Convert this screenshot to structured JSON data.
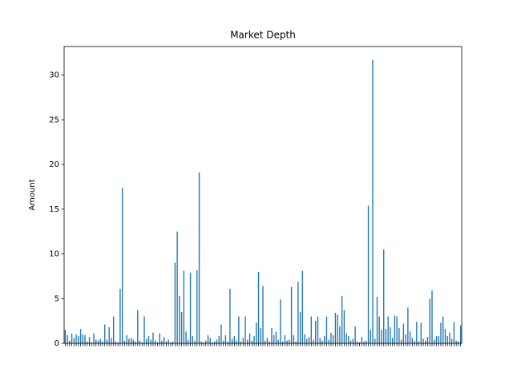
{
  "chart_data": {
    "type": "bar",
    "title": "Market Depth",
    "ylabel": "Amount",
    "color": "#1f77b4",
    "categories": [
      null,
      null,
      null,
      null,
      null,
      null,
      null,
      null,
      null,
      null,
      null,
      null,
      null,
      null,
      null,
      null,
      null,
      null,
      null,
      null,
      null,
      null,
      null,
      null,
      null,
      null,
      null,
      null,
      null,
      null,
      null,
      null,
      null,
      null,
      null,
      null,
      null,
      null,
      null,
      null,
      null,
      null,
      null,
      null,
      null,
      null,
      null,
      null,
      null,
      null,
      null,
      null,
      null,
      null,
      null,
      null,
      null,
      null,
      null,
      null,
      null,
      null,
      null,
      null,
      null,
      null,
      null,
      null,
      null,
      null,
      null,
      null,
      null,
      null,
      null,
      null,
      null,
      null,
      null,
      null,
      null,
      null,
      null,
      null,
      null,
      null,
      null,
      null,
      null,
      null,
      null,
      null,
      null,
      null,
      null,
      null,
      null,
      null,
      null,
      null,
      null,
      null,
      null,
      null,
      null,
      null,
      null,
      null,
      null,
      null,
      null,
      null,
      null,
      null,
      null,
      null,
      null,
      null,
      null,
      null,
      null,
      null,
      null,
      null,
      null,
      null,
      null,
      null,
      null,
      null,
      null,
      null,
      null,
      null,
      null,
      null,
      null,
      null,
      null,
      null,
      null,
      null,
      null,
      null,
      null,
      null,
      null,
      null,
      null,
      null,
      null,
      null,
      null,
      null,
      null,
      null,
      null,
      null,
      null,
      null,
      null,
      null,
      null,
      null,
      null,
      null,
      null,
      null,
      null,
      null,
      null,
      null,
      null,
      null,
      null,
      null,
      null,
      null,
      null,
      null,
      null
    ],
    "values": [
      1.5,
      0.9,
      0.3,
      1.1,
      0.6,
      1.0,
      0.8,
      1.6,
      1.0,
      0.9,
      0.2,
      0.7,
      0.1,
      1.1,
      0.4,
      0.3,
      0.5,
      0.2,
      2.1,
      0.4,
      1.8,
      0.6,
      3.0,
      0.2,
      0.1,
      6.1,
      17.4,
      0.3,
      0.9,
      0.5,
      0.6,
      0.4,
      0.2,
      3.7,
      0.3,
      0.1,
      3.0,
      0.5,
      0.8,
      0.4,
      1.2,
      0.3,
      0.1,
      1.1,
      0.3,
      0.7,
      0.2,
      0.4,
      0.1,
      0.2,
      9.0,
      12.5,
      5.3,
      3.5,
      8.1,
      1.3,
      0.4,
      7.9,
      0.8,
      0.3,
      8.2,
      19.1,
      0.2,
      0.1,
      0.3,
      0.9,
      0.6,
      0.1,
      0.2,
      0.4,
      0.8,
      2.1,
      0.3,
      0.9,
      0.2,
      6.1,
      0.5,
      0.8,
      0.3,
      3.0,
      0.2,
      0.6,
      3.0,
      0.4,
      1.1,
      0.3,
      0.8,
      2.3,
      8.0,
      1.7,
      6.4,
      0.3,
      0.6,
      0.2,
      1.7,
      0.9,
      1.3,
      0.4,
      4.9,
      0.2,
      0.9,
      0.3,
      0.4,
      6.3,
      0.9,
      0.2,
      6.9,
      3.5,
      8.1,
      1.0,
      0.5,
      0.7,
      3.0,
      0.4,
      2.5,
      3.0,
      0.6,
      0.3,
      0.8,
      3.0,
      0.4,
      1.2,
      0.9,
      3.4,
      3.2,
      1.9,
      5.3,
      3.7,
      1.1,
      0.8,
      0.3,
      0.5,
      1.9,
      0.2,
      0.1,
      0.7,
      0.2,
      0.3,
      15.4,
      1.5,
      31.7,
      0.5,
      5.2,
      3.0,
      1.5,
      10.5,
      1.6,
      3.0,
      1.8,
      0.6,
      3.1,
      3.0,
      1.7,
      0.4,
      2.2,
      1.0,
      4.0,
      1.3,
      0.6,
      0.3,
      2.4,
      0.2,
      2.3,
      0.5,
      0.3,
      0.7,
      5.0,
      5.9,
      0.4,
      0.8,
      0.8,
      2.3,
      3.0,
      1.6,
      0.8,
      1.2,
      0.5,
      2.4,
      0.3,
      0.2,
      2.0
    ],
    "ylim": [
      0,
      33.2
    ],
    "yticks": [
      0,
      5,
      10,
      15,
      20,
      25,
      30
    ],
    "grid": false
  }
}
